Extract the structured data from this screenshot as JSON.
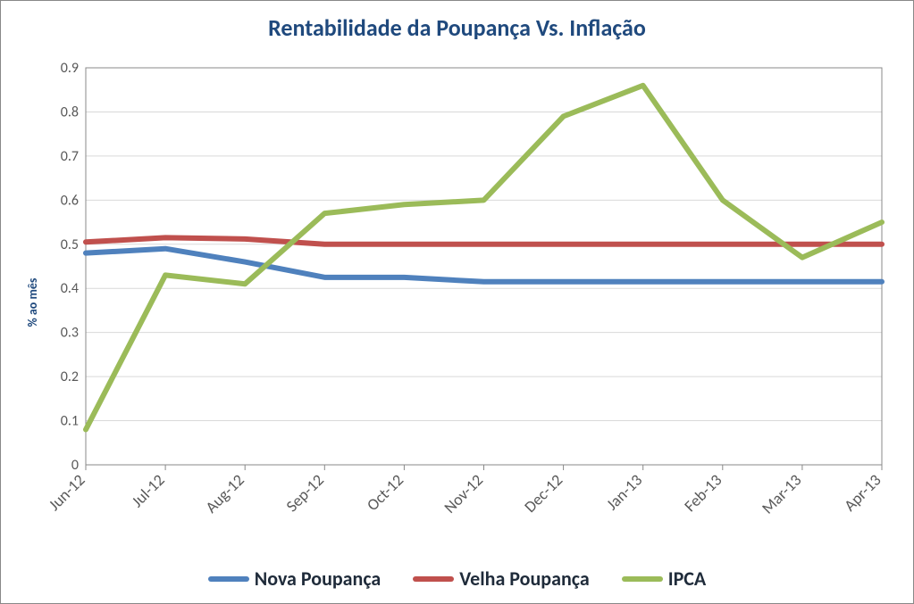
{
  "chart": {
    "type": "line",
    "title": "Rentabilidade da Poupança Vs. Inflação",
    "title_fontsize": 26,
    "title_color": "#1f497d",
    "ylabel": "% ao mês",
    "ylabel_fontsize": 14,
    "ylabel_color": "#1f497d",
    "background_color": "#ffffff",
    "border_color": "#888888",
    "grid_color": "#d9d9d9",
    "axis_color": "#888888",
    "tick_font_color": "#595959",
    "tick_fontsize": 16,
    "xlabel_fontsize": 18,
    "xlabel_rotation": -45,
    "legend_fontsize": 22,
    "line_width": 6,
    "ylim": [
      0,
      0.9
    ],
    "ytick_step": 0.1,
    "yticks": [
      0,
      0.1,
      0.2,
      0.3,
      0.4,
      0.5,
      0.6,
      0.7,
      0.8,
      0.9
    ],
    "categories": [
      "Jun-12",
      "Jul-12",
      "Aug-12",
      "Sep-12",
      "Oct-12",
      "Nov-12",
      "Dec-12",
      "Jan-13",
      "Feb-13",
      "Mar-13",
      "Apr-13"
    ],
    "series": [
      {
        "name": "Nova Poupança",
        "color": "#4f81bd",
        "values": [
          0.48,
          0.49,
          0.46,
          0.425,
          0.425,
          0.415,
          0.415,
          0.415,
          0.415,
          0.415,
          0.415
        ]
      },
      {
        "name": "Velha Poupança",
        "color": "#c0504d",
        "values": [
          0.505,
          0.515,
          0.512,
          0.5,
          0.5,
          0.5,
          0.5,
          0.5,
          0.5,
          0.5,
          0.5
        ]
      },
      {
        "name": "IPCA",
        "color": "#9bbb59",
        "values": [
          0.08,
          0.43,
          0.41,
          0.57,
          0.59,
          0.6,
          0.79,
          0.86,
          0.6,
          0.47,
          0.55
        ]
      }
    ]
  }
}
